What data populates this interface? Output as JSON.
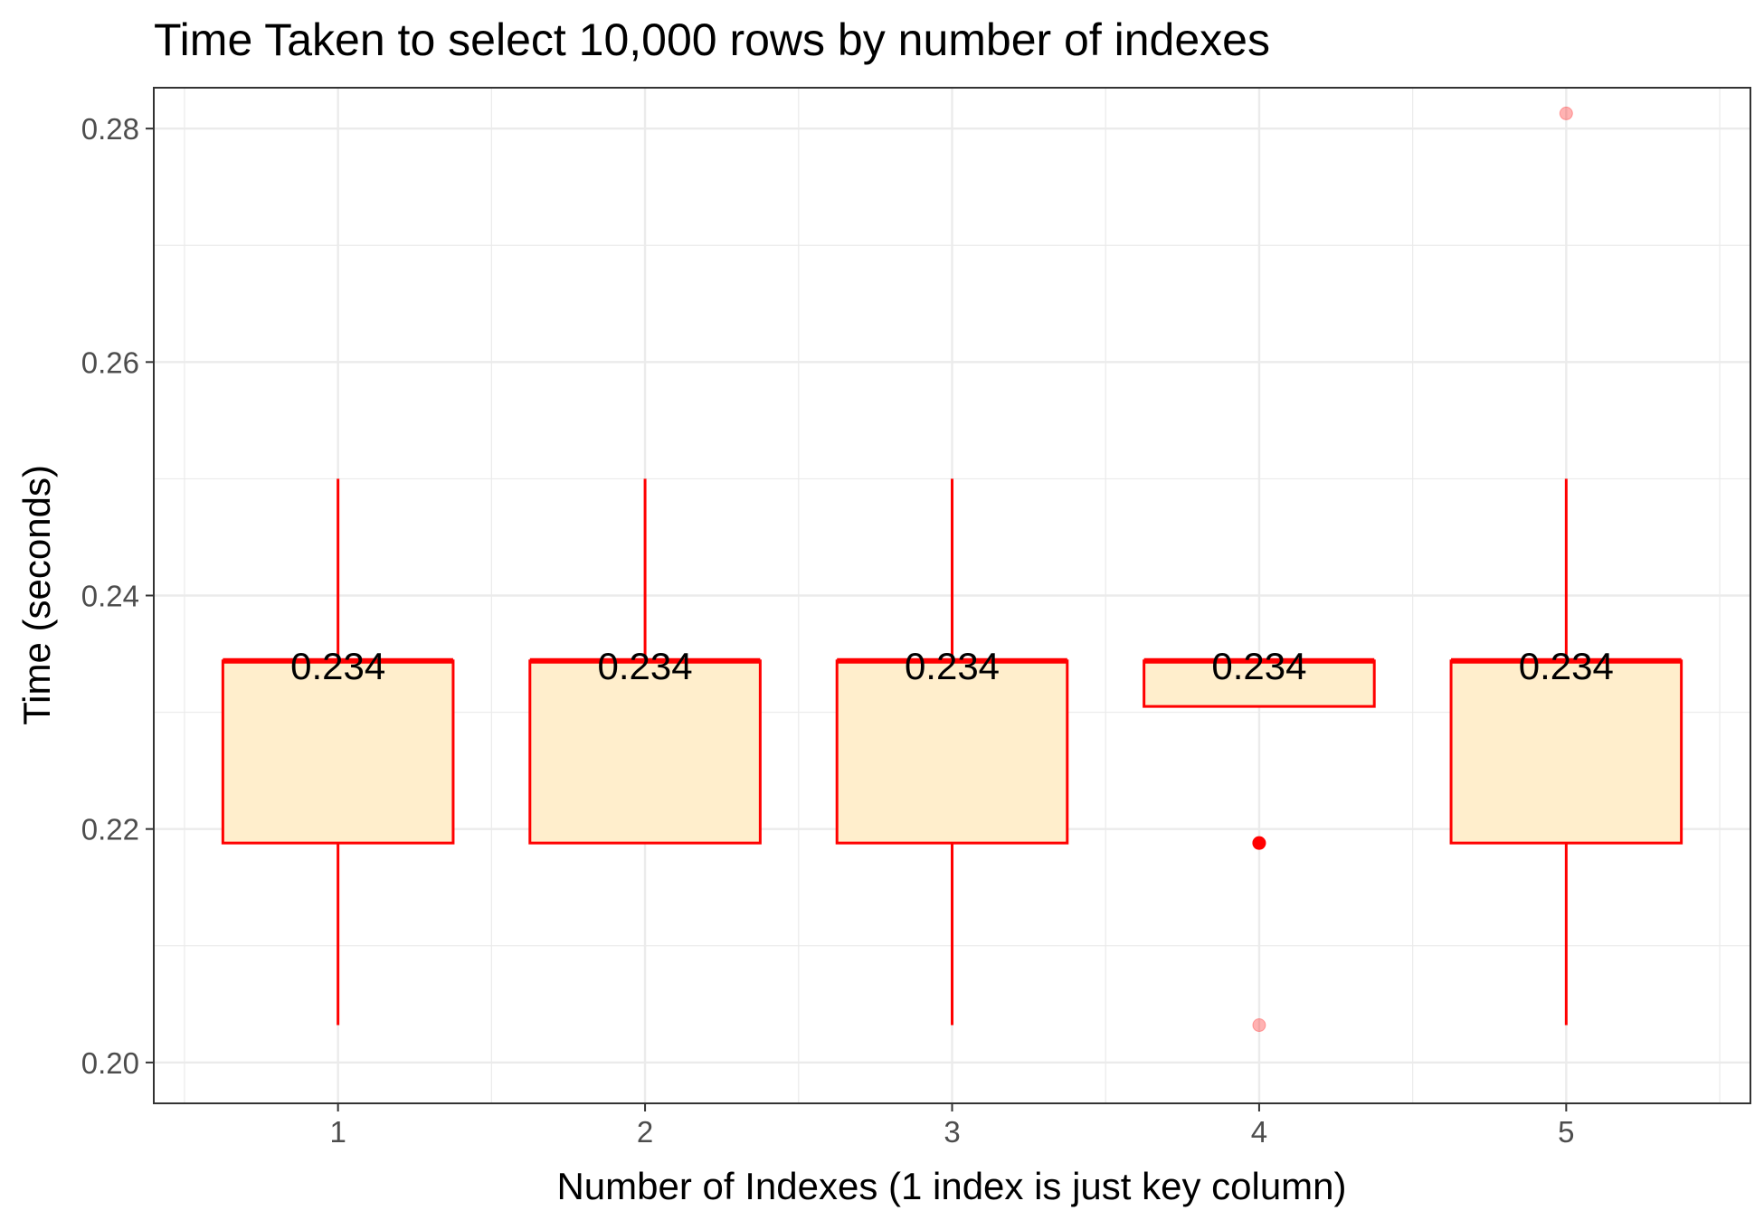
{
  "chart_data": {
    "type": "box",
    "title": "Time Taken to select 10,000 rows by number of indexes",
    "xlabel": "Number of Indexes (1 index is just key column)",
    "ylabel": "Time (seconds)",
    "categories": [
      "1",
      "2",
      "3",
      "4",
      "5"
    ],
    "ylim": [
      0.1965,
      0.2835
    ],
    "yticks": [
      0.2,
      0.22,
      0.24,
      0.26,
      0.28
    ],
    "ytick_labels": [
      "0.20",
      "0.22",
      "0.24",
      "0.26",
      "0.28"
    ],
    "grid": true,
    "colors": {
      "box_stroke": "#ff0000",
      "box_fill": "#ffeecc",
      "grid": "#ebebeb"
    },
    "boxes": [
      {
        "category": "1",
        "lower_whisker": 0.2032,
        "q1": 0.2188,
        "median": 0.2344,
        "q3": 0.2344,
        "upper_whisker": 0.25,
        "median_label": "0.234",
        "outliers": []
      },
      {
        "category": "2",
        "lower_whisker": 0.2188,
        "q1": 0.2188,
        "median": 0.2344,
        "q3": 0.2344,
        "upper_whisker": 0.25,
        "median_label": "0.234",
        "outliers": []
      },
      {
        "category": "3",
        "lower_whisker": 0.2032,
        "q1": 0.2188,
        "median": 0.2344,
        "q3": 0.2344,
        "upper_whisker": 0.25,
        "median_label": "0.234",
        "outliers": []
      },
      {
        "category": "4",
        "lower_whisker": 0.2305,
        "q1": 0.2305,
        "median": 0.2344,
        "q3": 0.2344,
        "upper_whisker": 0.2344,
        "median_label": "0.234",
        "outliers": [
          0.2188,
          0.2032
        ]
      },
      {
        "category": "5",
        "lower_whisker": 0.2032,
        "q1": 0.2188,
        "median": 0.2344,
        "q3": 0.2344,
        "upper_whisker": 0.25,
        "median_label": "0.234",
        "outliers": [
          0.2813
        ]
      }
    ]
  }
}
